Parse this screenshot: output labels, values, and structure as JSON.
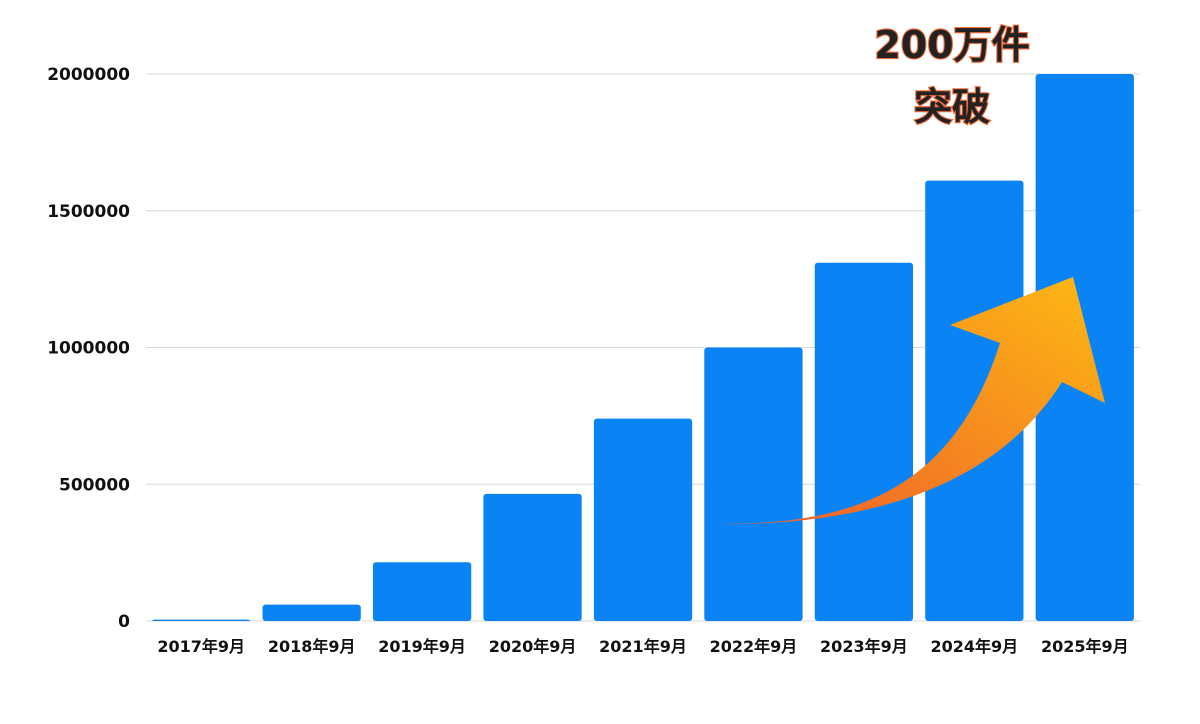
{
  "chart_data": {
    "type": "bar",
    "categories": [
      "2017年9月",
      "2018年9月",
      "2019年9月",
      "2020年9月",
      "2021年9月",
      "2022年9月",
      "2023年9月",
      "2024年9月",
      "2025年9月"
    ],
    "series": [
      {
        "values": [
          5000,
          60000,
          215000,
          465000,
          740000,
          1000000,
          1310000,
          1610000,
          2000000
        ]
      }
    ],
    "ylim": [
      0,
      2000000
    ],
    "yticks": [
      "0",
      "500000",
      "1000000",
      "1500000",
      "2000000"
    ],
    "ytick_values": [
      0,
      500000,
      1000000,
      1500000,
      2000000
    ],
    "grid": true,
    "xlabel": "",
    "ylabel": "",
    "annotation": {
      "line1": "200万件",
      "line2": "突破"
    },
    "colors": {
      "bar": "#0a84f5",
      "arrow_start": "#ef5a2c",
      "arrow_end": "#fdb913",
      "annotation_fill": "#222222",
      "annotation_stroke": "#f26a3a"
    }
  }
}
